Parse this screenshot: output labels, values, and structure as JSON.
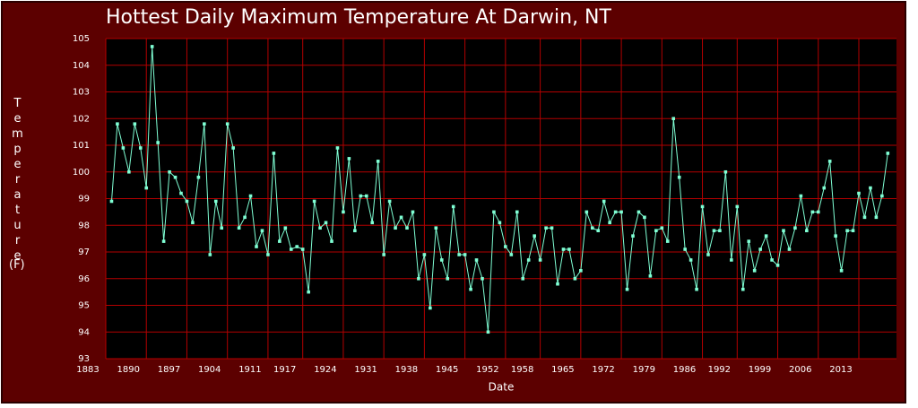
{
  "chart_data": {
    "type": "line",
    "title": "Hottest Daily Maximum Temperature At Darwin, NT",
    "xlabel": "Date",
    "ylabel": "Temperature",
    "yunit": "(F)",
    "x": [
      1884,
      1885,
      1886,
      1887,
      1888,
      1889,
      1890,
      1891,
      1892,
      1893,
      1894,
      1895,
      1896,
      1897,
      1898,
      1899,
      1900,
      1901,
      1902,
      1903,
      1904,
      1905,
      1906,
      1907,
      1908,
      1909,
      1910,
      1911,
      1912,
      1913,
      1914,
      1915,
      1916,
      1917,
      1918,
      1919,
      1920,
      1921,
      1922,
      1923,
      1924,
      1925,
      1926,
      1927,
      1928,
      1929,
      1930,
      1931,
      1932,
      1933,
      1934,
      1935,
      1936,
      1937,
      1938,
      1939,
      1940,
      1941,
      1942,
      1943,
      1944,
      1945,
      1946,
      1947,
      1948,
      1949,
      1950,
      1951,
      1952,
      1953,
      1954,
      1955,
      1956,
      1957,
      1958,
      1959,
      1960,
      1961,
      1962,
      1963,
      1964,
      1965,
      1966,
      1967,
      1968,
      1969,
      1970,
      1971,
      1972,
      1973,
      1974,
      1975,
      1976,
      1977,
      1978,
      1979,
      1980,
      1981,
      1982,
      1983,
      1984,
      1985,
      1986,
      1987,
      1988,
      1989,
      1990,
      1991,
      1992,
      1993,
      1994,
      1995,
      1996,
      1997,
      1998,
      1999,
      2000,
      2001,
      2002,
      2003,
      2004,
      2005,
      2006,
      2007,
      2008,
      2009,
      2010,
      2011,
      2012,
      2013,
      2014,
      2015,
      2016,
      2017,
      2018
    ],
    "series": [
      {
        "name": "Temperature",
        "color": "#7fffd4",
        "values": [
          98.9,
          101.8,
          100.9,
          100.0,
          101.8,
          100.9,
          99.4,
          104.7,
          101.1,
          97.4,
          100.0,
          99.8,
          99.2,
          98.9,
          98.1,
          99.8,
          101.8,
          96.9,
          98.9,
          97.9,
          101.8,
          100.9,
          97.9,
          98.3,
          99.1,
          97.2,
          97.8,
          96.9,
          100.7,
          97.4,
          97.9,
          97.1,
          97.2,
          97.1,
          95.5,
          98.9,
          97.9,
          98.1,
          97.4,
          100.9,
          98.5,
          100.5,
          97.8,
          99.1,
          99.1,
          98.1,
          100.4,
          96.9,
          98.9,
          97.9,
          98.3,
          97.9,
          98.5,
          96.0,
          96.9,
          94.9,
          97.9,
          96.7,
          96.0,
          98.7,
          96.9,
          96.9,
          95.6,
          96.7,
          96.0,
          94.0,
          98.5,
          98.1,
          97.2,
          96.9,
          98.5,
          96.0,
          96.7,
          97.6,
          96.7,
          97.9,
          97.9,
          95.8,
          97.1,
          97.1,
          96.0,
          96.3,
          98.5,
          97.9,
          97.8,
          98.9,
          98.1,
          98.5,
          98.5,
          95.6,
          97.6,
          98.5,
          98.3,
          96.1,
          97.8,
          97.9,
          97.4,
          102.0,
          99.8,
          97.1,
          96.7,
          95.6,
          98.7,
          96.9,
          97.8,
          97.8,
          100.0,
          96.7,
          98.7,
          95.6,
          97.4,
          96.3,
          97.1,
          97.6,
          96.7,
          96.5,
          97.8,
          97.1,
          97.9,
          99.1,
          97.8,
          98.5,
          98.5,
          99.4,
          100.4,
          97.6,
          96.3,
          97.8,
          97.8,
          99.2,
          98.3,
          99.4,
          98.3,
          99.1,
          100.7
        ]
      }
    ],
    "xlim": [
      1883,
      2019.5
    ],
    "xticks": [
      1883,
      1890,
      1897,
      1904,
      1911,
      1917,
      1924,
      1931,
      1938,
      1945,
      1952,
      1958,
      1965,
      1972,
      1979,
      1986,
      1992,
      1999,
      2006,
      2013
    ],
    "ylim": [
      93,
      105
    ],
    "yticks": [
      93,
      94,
      95,
      96,
      97,
      98,
      99,
      100,
      101,
      102,
      103,
      104,
      105
    ],
    "grid": true,
    "grid_color": "#b30000",
    "frame_color": "#5c0000",
    "plot_color": "#000000"
  }
}
